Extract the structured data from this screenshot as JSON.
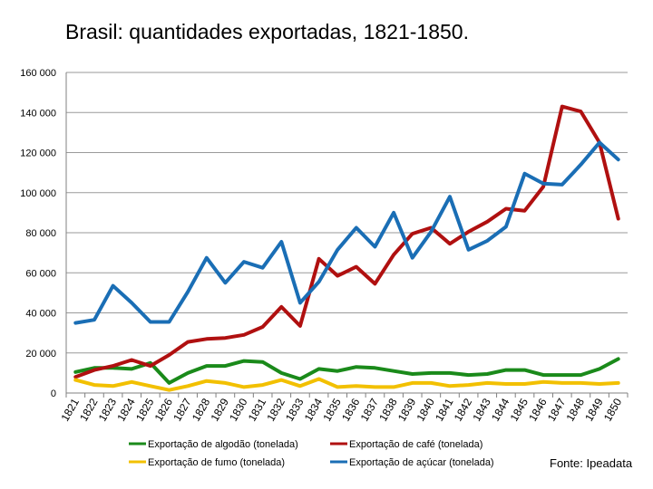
{
  "title": "Brasil: quantidades exportadas, 1821-1850.",
  "source": "Fonte: Ipeadata",
  "chart_data": {
    "type": "line",
    "title": "Brasil: quantidades exportadas, 1821-1850.",
    "xlabel": "",
    "ylabel": "",
    "ylim": [
      0,
      160000
    ],
    "yticks": [
      0,
      20000,
      40000,
      60000,
      80000,
      100000,
      120000,
      140000,
      160000
    ],
    "ytick_labels": [
      "0",
      "20 000",
      "40 000",
      "60 000",
      "80 000",
      "100 000",
      "120 000",
      "140 000",
      "160 000"
    ],
    "grid": true,
    "legend_position": "bottom",
    "categories": [
      "1821",
      "1822",
      "1823",
      "1824",
      "1825",
      "1826",
      "1827",
      "1828",
      "1829",
      "1830",
      "1831",
      "1832",
      "1833",
      "1834",
      "1835",
      "1836",
      "1837",
      "1838",
      "1839",
      "1840",
      "1841",
      "1842",
      "1843",
      "1844",
      "1845",
      "1846",
      "1847",
      "1848",
      "1849",
      "1850"
    ],
    "series": [
      {
        "name": "Exportação de algodão (tonelada)",
        "color": "#1a8a1a",
        "values": [
          10500,
          12500,
          12500,
          12000,
          15000,
          5000,
          10000,
          13500,
          13500,
          16000,
          15500,
          10000,
          7000,
          12000,
          11000,
          13000,
          12500,
          11000,
          9500,
          10000,
          10000,
          9000,
          9500,
          11500,
          11500,
          9000,
          9000,
          9000,
          12000,
          17000
        ]
      },
      {
        "name": "Exportação de café (tonelada)",
        "color": "#b01010",
        "values": [
          8000,
          11500,
          13500,
          16500,
          13500,
          19000,
          25500,
          27000,
          27500,
          29000,
          33000,
          43000,
          33500,
          67000,
          58500,
          63000,
          54500,
          69000,
          79500,
          82500,
          74500,
          80500,
          85500,
          92000,
          91000,
          103000,
          143000,
          140500,
          125000,
          87000
        ]
      },
      {
        "name": "Exportação de fumo (tonelada)",
        "color": "#f2c000",
        "values": [
          6500,
          4000,
          3500,
          5500,
          3500,
          1500,
          3500,
          6000,
          5000,
          3000,
          4000,
          6500,
          3500,
          7000,
          3000,
          3500,
          3000,
          3000,
          5000,
          5000,
          3500,
          4000,
          5000,
          4500,
          4500,
          5500,
          5000,
          5000,
          4500,
          5000
        ]
      },
      {
        "name": "Exportação de açúcar (tonelada)",
        "color": "#1a6eb5",
        "values": [
          35000,
          36500,
          53500,
          45000,
          35500,
          35500,
          50500,
          67500,
          55000,
          65500,
          62500,
          75500,
          45000,
          55500,
          71500,
          82500,
          73000,
          90000,
          67500,
          80500,
          98000,
          71500,
          76000,
          83000,
          109500,
          104500,
          104000,
          114000,
          125000,
          116500
        ]
      }
    ]
  }
}
